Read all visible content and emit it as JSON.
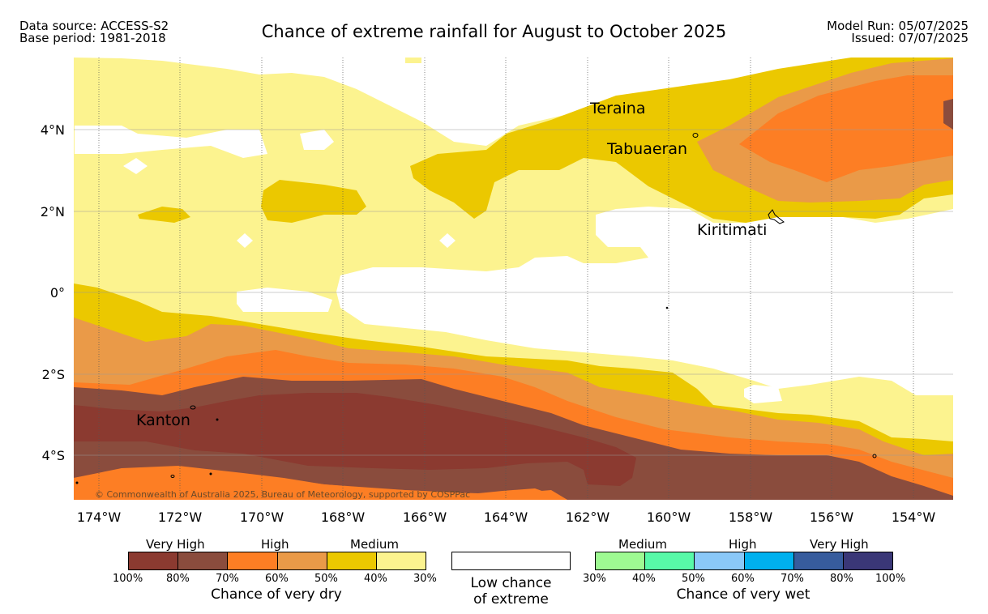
{
  "header": {
    "data_source": "Data source: ACCESS-S2",
    "base_period": "Base period: 1981-2018",
    "title": "Chance of extreme rainfall for August to October 2025",
    "model_run": "Model Run: 05/07/2025",
    "issued": "Issued: 07/07/2025"
  },
  "map": {
    "credit": "© Commonwealth of Australia 2025, Bureau of Meteorology, supported by COSPPac",
    "lon_labels": [
      "174°W",
      "172°W",
      "170°W",
      "168°W",
      "166°W",
      "164°W",
      "162°W",
      "160°W",
      "158°W",
      "156°W",
      "154°W"
    ],
    "lon_values": [
      -174,
      -172,
      -170,
      -168,
      -166,
      -164,
      -162,
      -160,
      -158,
      -156,
      -154
    ],
    "lat_labels": [
      "4°N",
      "2°N",
      "0°",
      "2°S",
      "4°S"
    ],
    "lat_values": [
      4,
      2,
      0,
      -2,
      -4
    ],
    "extent": {
      "lon_min": -174.6,
      "lon_max": -153,
      "lat_min": -5.1,
      "lat_max": 5.8
    },
    "places": [
      {
        "name": "Teraina",
        "lon": -161.3,
        "lat": 4.5
      },
      {
        "name": "Tabuaeran",
        "lon": -159.4,
        "lat": 3.85
      },
      {
        "name": "Kiritimati",
        "lon": -157.4,
        "lat": 1.9
      },
      {
        "name": "Kanton",
        "lon": -171.7,
        "lat": -2.8
      }
    ],
    "colors": {
      "dry_100_80": "#8b3a30",
      "dry_80_70": "#8a4c3d",
      "dry_70_60": "#fd7e24",
      "dry_60_50": "#ea9a48",
      "dry_50_40": "#ebc800",
      "dry_40_30": "#fcf38f",
      "low": "#ffffff"
    }
  },
  "legend": {
    "dry": {
      "categories": [
        "Very High",
        "High",
        "Medium"
      ],
      "ticks": [
        "100%",
        "80%",
        "70%",
        "60%",
        "50%",
        "40%",
        "30%"
      ],
      "colors": [
        "#8b3a30",
        "#8a4c3d",
        "#fd7e24",
        "#ea9a48",
        "#ebc800",
        "#fcf38f"
      ],
      "caption": "Chance of very dry"
    },
    "low": {
      "caption_line1": "Low chance",
      "caption_line2": "of extreme"
    },
    "wet": {
      "categories": [
        "Medium",
        "High",
        "Very High"
      ],
      "ticks": [
        "30%",
        "40%",
        "50%",
        "60%",
        "70%",
        "80%",
        "100%"
      ],
      "colors": [
        "#9efa92",
        "#58f9a8",
        "#8ac8f8",
        "#00b0ee",
        "#375c9d",
        "#3a3777"
      ],
      "caption": "Chance of very wet"
    }
  }
}
